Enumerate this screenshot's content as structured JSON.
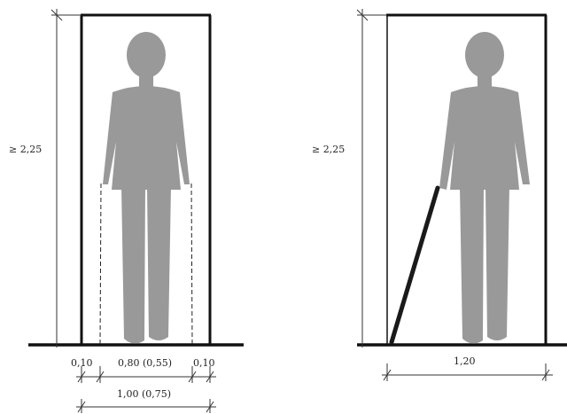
{
  "colors": {
    "figure": "#999999",
    "line": "#111111",
    "cane": "#1a1a1a",
    "text": "#222222",
    "background": "#ffffff"
  },
  "left_panel": {
    "height_label": "≥ 2,25",
    "clearance_left_label": "0,10",
    "passage_width_label": "0,80 (0,55)",
    "clearance_right_label": "0,10",
    "total_width_label": "1,00 (0,75)"
  },
  "right_panel": {
    "height_label": "≥ 2,25",
    "width_label": "1,20"
  }
}
